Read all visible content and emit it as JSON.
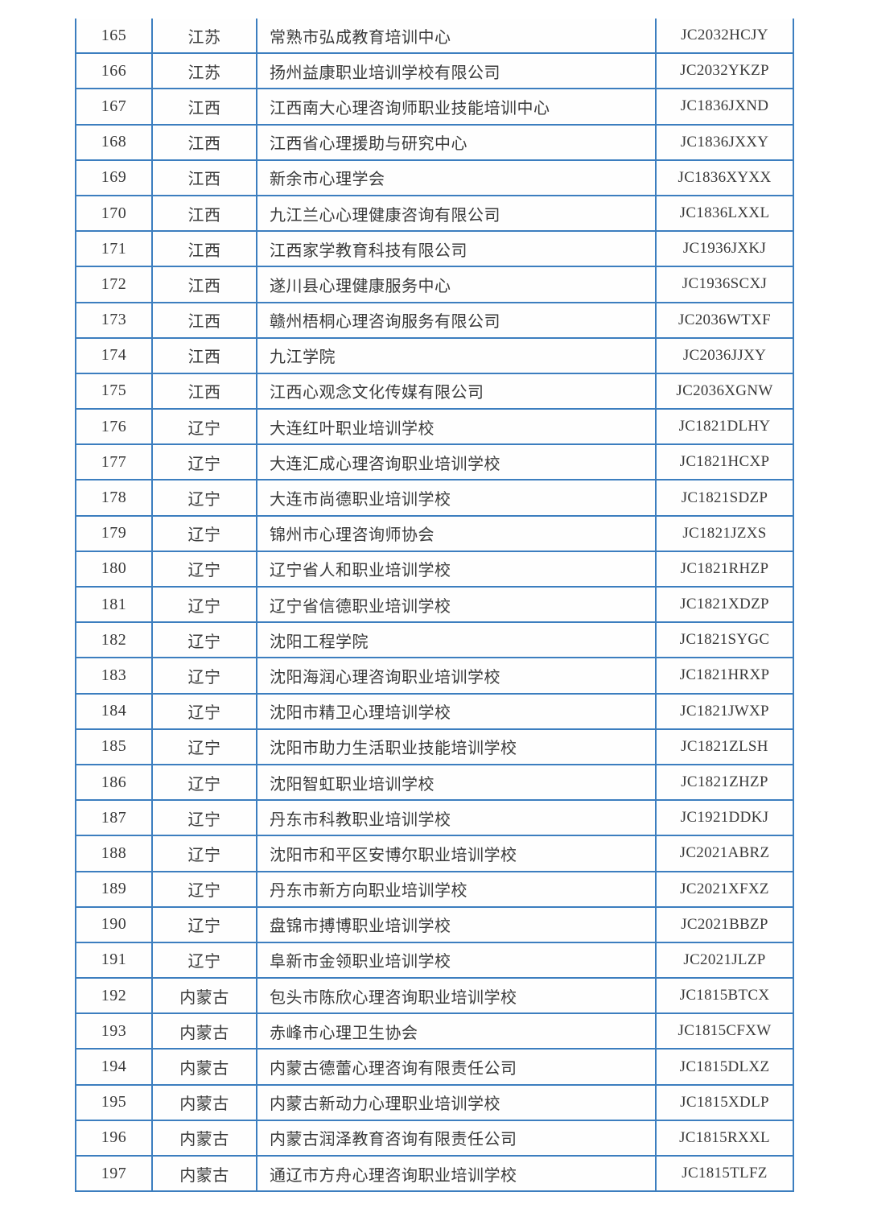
{
  "colors": {
    "border": "#3c7ebf",
    "text": "#3a3a3a"
  },
  "table": {
    "rows": [
      {
        "no": "165",
        "province": "江苏",
        "name": "常熟市弘成教育培训中心",
        "code": "JC2032HCJY"
      },
      {
        "no": "166",
        "province": "江苏",
        "name": "扬州益康职业培训学校有限公司",
        "code": "JC2032YKZP"
      },
      {
        "no": "167",
        "province": "江西",
        "name": "江西南大心理咨询师职业技能培训中心",
        "code": "JC1836JXND"
      },
      {
        "no": "168",
        "province": "江西",
        "name": "江西省心理援助与研究中心",
        "code": "JC1836JXXY"
      },
      {
        "no": "169",
        "province": "江西",
        "name": "新余市心理学会",
        "code": "JC1836XYXX"
      },
      {
        "no": "170",
        "province": "江西",
        "name": "九江兰心心理健康咨询有限公司",
        "code": "JC1836LXXL"
      },
      {
        "no": "171",
        "province": "江西",
        "name": "江西家学教育科技有限公司",
        "code": "JC1936JXKJ"
      },
      {
        "no": "172",
        "province": "江西",
        "name": "遂川县心理健康服务中心",
        "code": "JC1936SCXJ"
      },
      {
        "no": "173",
        "province": "江西",
        "name": "赣州梧桐心理咨询服务有限公司",
        "code": "JC2036WTXF"
      },
      {
        "no": "174",
        "province": "江西",
        "name": "九江学院",
        "code": "JC2036JJXY"
      },
      {
        "no": "175",
        "province": "江西",
        "name": "江西心观念文化传媒有限公司",
        "code": "JC2036XGNW"
      },
      {
        "no": "176",
        "province": "辽宁",
        "name": "大连红叶职业培训学校",
        "code": "JC1821DLHY"
      },
      {
        "no": "177",
        "province": "辽宁",
        "name": "大连汇成心理咨询职业培训学校",
        "code": "JC1821HCXP"
      },
      {
        "no": "178",
        "province": "辽宁",
        "name": "大连市尚德职业培训学校",
        "code": "JC1821SDZP"
      },
      {
        "no": "179",
        "province": "辽宁",
        "name": "锦州市心理咨询师协会",
        "code": "JC1821JZXS"
      },
      {
        "no": "180",
        "province": "辽宁",
        "name": "辽宁省人和职业培训学校",
        "code": "JC1821RHZP"
      },
      {
        "no": "181",
        "province": "辽宁",
        "name": "辽宁省信德职业培训学校",
        "code": "JC1821XDZP"
      },
      {
        "no": "182",
        "province": "辽宁",
        "name": "沈阳工程学院",
        "code": "JC1821SYGC"
      },
      {
        "no": "183",
        "province": "辽宁",
        "name": "沈阳海润心理咨询职业培训学校",
        "code": "JC1821HRXP"
      },
      {
        "no": "184",
        "province": "辽宁",
        "name": "沈阳市精卫心理培训学校",
        "code": "JC1821JWXP"
      },
      {
        "no": "185",
        "province": "辽宁",
        "name": "沈阳市助力生活职业技能培训学校",
        "code": "JC1821ZLSH"
      },
      {
        "no": "186",
        "province": "辽宁",
        "name": "沈阳智虹职业培训学校",
        "code": "JC1821ZHZP"
      },
      {
        "no": "187",
        "province": "辽宁",
        "name": "丹东市科教职业培训学校",
        "code": "JC1921DDKJ"
      },
      {
        "no": "188",
        "province": "辽宁",
        "name": "沈阳市和平区安博尔职业培训学校",
        "code": "JC2021ABRZ"
      },
      {
        "no": "189",
        "province": "辽宁",
        "name": "丹东市新方向职业培训学校",
        "code": "JC2021XFXZ"
      },
      {
        "no": "190",
        "province": "辽宁",
        "name": "盘锦市搏博职业培训学校",
        "code": "JC2021BBZP"
      },
      {
        "no": "191",
        "province": "辽宁",
        "name": "阜新市金领职业培训学校",
        "code": "JC2021JLZP"
      },
      {
        "no": "192",
        "province": "内蒙古",
        "name": "包头市陈欣心理咨询职业培训学校",
        "code": "JC1815BTCX"
      },
      {
        "no": "193",
        "province": "内蒙古",
        "name": "赤峰市心理卫生协会",
        "code": "JC1815CFXW"
      },
      {
        "no": "194",
        "province": "内蒙古",
        "name": "内蒙古德蕾心理咨询有限责任公司",
        "code": "JC1815DLXZ"
      },
      {
        "no": "195",
        "province": "内蒙古",
        "name": "内蒙古新动力心理职业培训学校",
        "code": "JC1815XDLP"
      },
      {
        "no": "196",
        "province": "内蒙古",
        "name": "内蒙古润泽教育咨询有限责任公司",
        "code": "JC1815RXXL"
      },
      {
        "no": "197",
        "province": "内蒙古",
        "name": "通辽市方舟心理咨询职业培训学校",
        "code": "JC1815TLFZ"
      }
    ]
  }
}
